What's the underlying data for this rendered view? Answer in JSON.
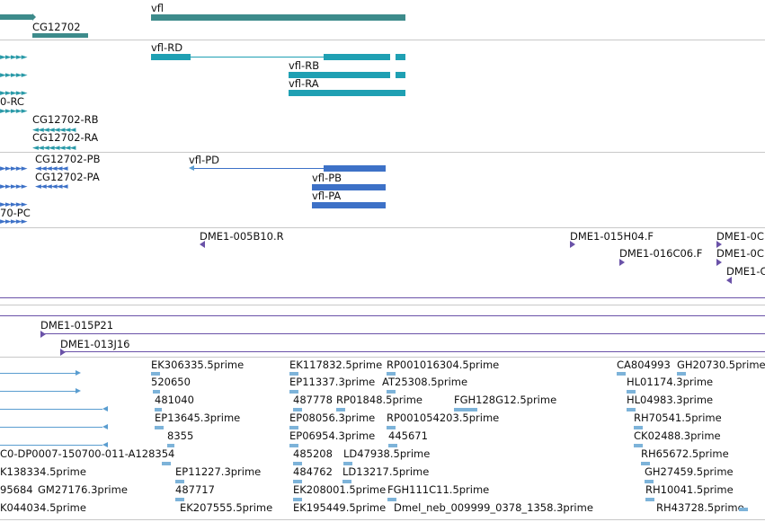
{
  "colors": {
    "gene": "#3d8b8b",
    "transcript": "#1fa0b3",
    "protein": "#3d71c7",
    "clone": "#6a52a8",
    "est": "#7db3d9"
  },
  "gene_track": {
    "gene1": "vfl",
    "gene2": "CG12702"
  },
  "transcript_track": {
    "t1": "vfl-RD",
    "t2": "vfl-RB",
    "t3": "vfl-RA",
    "t4": "0-RC",
    "t5": "CG12702-RB",
    "t6": "CG12702-RA"
  },
  "protein_track": {
    "p1": "CG12702-PB",
    "p2": "vfl-PD",
    "p3": "CG12702-PA",
    "p4": "vfl-PB",
    "p5": "vfl-PA",
    "p6": "70-PC"
  },
  "bac_ends": {
    "e1": "DME1-005B10.R",
    "e2": "DME1-015H04.F",
    "e3": "DME1-0C",
    "e4": "DME1-016C06.F",
    "e5": "DME1-0C",
    "e6": "DME1-C"
  },
  "bac_clones": {
    "c1": "DME1-015P21",
    "c2": "DME1-013J16"
  },
  "est_track": {
    "row1": [
      "EK306335.5prime",
      "EK117832.5prime",
      "RP001016304.5prime",
      "CA804993",
      "GH20730.5prime"
    ],
    "row2": [
      "520650",
      "EP11337.3prime",
      "AT25308.5prime",
      "HL01174.3prime"
    ],
    "row3": [
      "481040",
      "487778",
      "RP01848.5prime",
      "FGH128G12.5prime",
      "HL04983.3prime"
    ],
    "row4": [
      "EP13645.3prime",
      "EP08056.3prime",
      "RP001054203.5prime",
      "RH70541.5prime"
    ],
    "row5": [
      "8355",
      "EP06954.3prime",
      "445671",
      "CK02488.3prime"
    ],
    "row6": [
      "C0-DP0007-150700-011-A128354",
      "485208",
      "LD47938.5prime",
      "RH65672.5prime"
    ],
    "row7": [
      "K138334.5prime",
      "EP11227.3prime",
      "484762",
      "LD13217.5prime",
      "GH27459.5prime"
    ],
    "row8": [
      "95684",
      "GM27176.3prime",
      "487717",
      "EK208001.5prime",
      "FGH111C11.5prime",
      "RH10041.5prime"
    ],
    "row9": [
      "K044034.5prime",
      "EK207555.5prime",
      "EK195449.5prime",
      "Dmel_neb_009999_0378_1358.3prime",
      "RH43728.5prime"
    ]
  }
}
